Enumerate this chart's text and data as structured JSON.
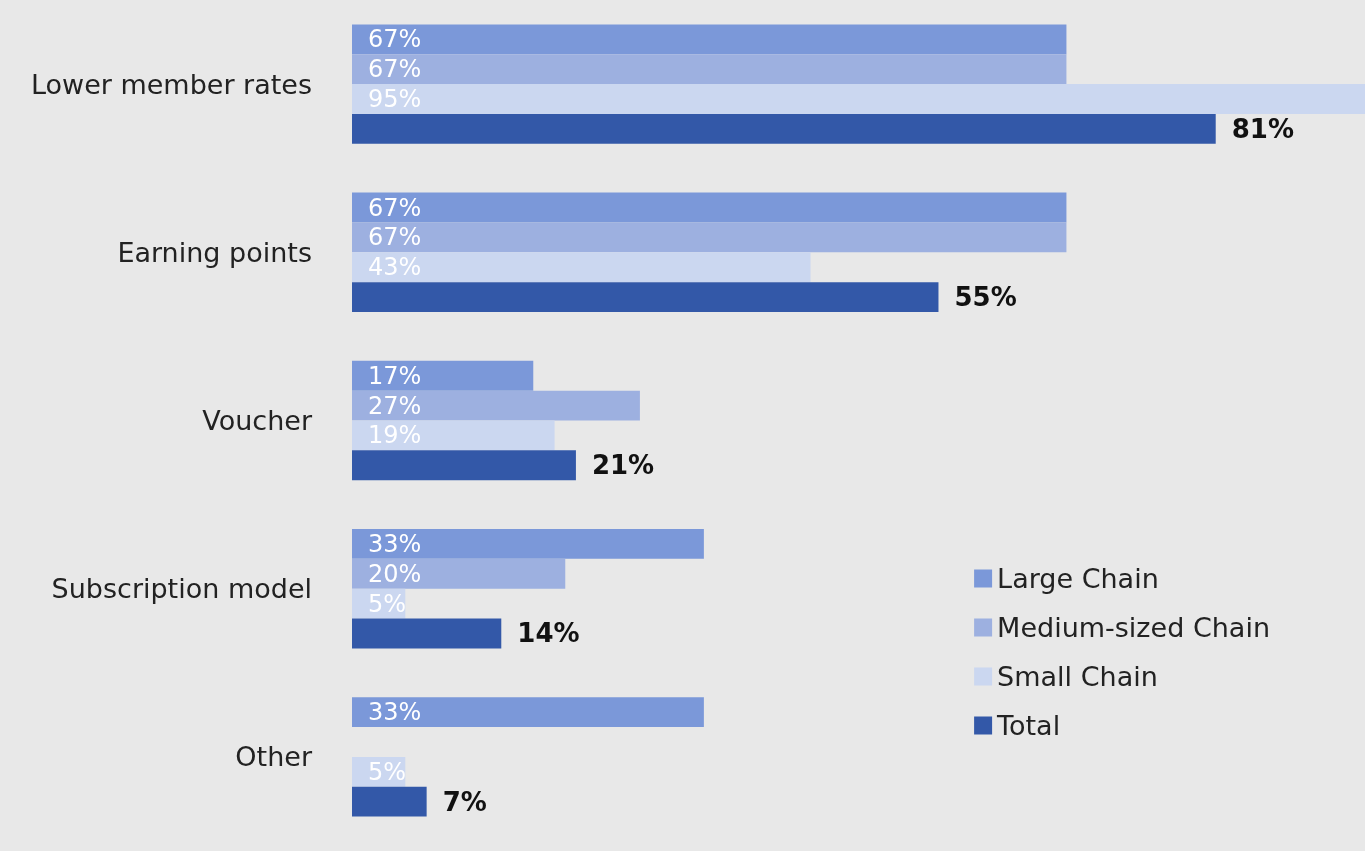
{
  "chart_data": {
    "type": "bar",
    "orientation": "horizontal",
    "categories": [
      "Lower member rates",
      "Earning points",
      "Voucher",
      "Subscription model",
      "Other"
    ],
    "series": [
      {
        "name": "Large Chain",
        "color": "#7b98d9",
        "values": [
          67,
          67,
          17,
          33,
          33
        ],
        "value_labels": [
          "67%",
          "67%",
          "17%",
          "33%",
          "33%"
        ]
      },
      {
        "name": "Medium-sized Chain",
        "color": "#9db0e0",
        "values": [
          67,
          67,
          27,
          20,
          null
        ],
        "value_labels": [
          "67%",
          "67%",
          "27%",
          "20%",
          null
        ]
      },
      {
        "name": "Small Chain",
        "color": "#cbd7f0",
        "values": [
          95,
          43,
          19,
          5,
          5
        ],
        "value_labels": [
          "95%",
          "43%",
          "19%",
          "5%",
          "5%"
        ]
      },
      {
        "name": "Total",
        "color": "#3358a8",
        "values": [
          81,
          55,
          21,
          14,
          7
        ],
        "value_labels": [
          "81%",
          "55%",
          "21%",
          "14%",
          "7%"
        ]
      }
    ],
    "legend": "right"
  }
}
